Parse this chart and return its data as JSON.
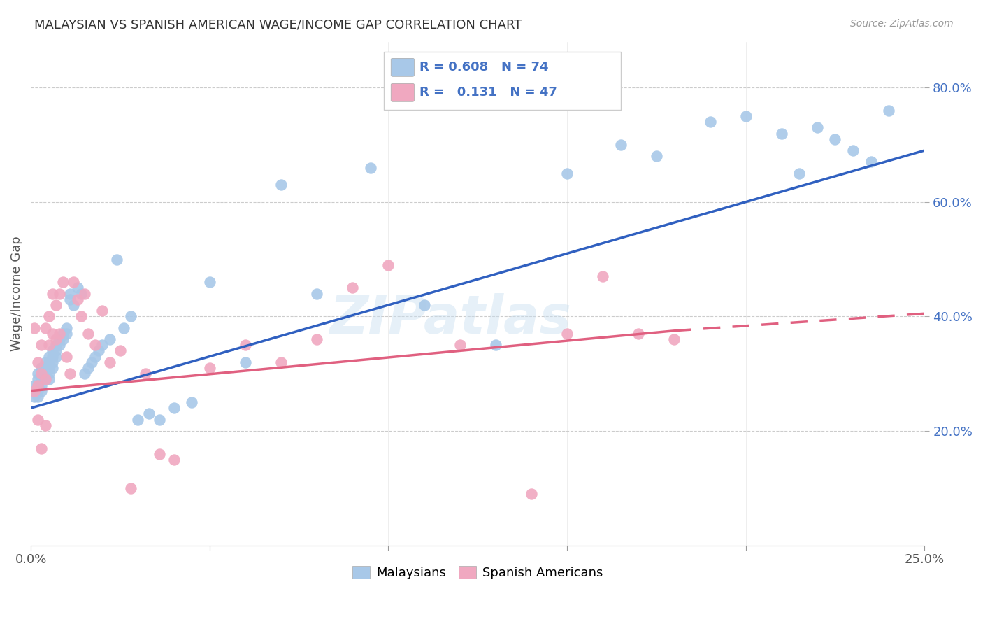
{
  "title": "MALAYSIAN VS SPANISH AMERICAN WAGE/INCOME GAP CORRELATION CHART",
  "source": "Source: ZipAtlas.com",
  "ylabel": "Wage/Income Gap",
  "xmin": 0.0,
  "xmax": 0.25,
  "ymin": 0.0,
  "ymax": 0.88,
  "yticks": [
    0.2,
    0.4,
    0.6,
    0.8
  ],
  "ytick_labels": [
    "20.0%",
    "40.0%",
    "60.0%",
    "80.0%"
  ],
  "xtick_positions": [
    0.0,
    0.05,
    0.1,
    0.15,
    0.2,
    0.25
  ],
  "r_malaysian": 0.608,
  "n_malaysian": 74,
  "r_spanish": 0.131,
  "n_spanish": 47,
  "blue_line_color": "#3060c0",
  "pink_line_color": "#e06080",
  "blue_dot_color": "#a8c8e8",
  "pink_dot_color": "#f0a8c0",
  "blue_text_color": "#4472c4",
  "watermark": "ZIPatlas",
  "malaysian_x": [
    0.001,
    0.001,
    0.001,
    0.002,
    0.002,
    0.002,
    0.002,
    0.002,
    0.003,
    0.003,
    0.003,
    0.003,
    0.003,
    0.004,
    0.004,
    0.004,
    0.004,
    0.005,
    0.005,
    0.005,
    0.005,
    0.005,
    0.006,
    0.006,
    0.006,
    0.006,
    0.007,
    0.007,
    0.007,
    0.008,
    0.008,
    0.009,
    0.009,
    0.01,
    0.01,
    0.011,
    0.011,
    0.012,
    0.013,
    0.014,
    0.015,
    0.016,
    0.017,
    0.018,
    0.019,
    0.02,
    0.022,
    0.024,
    0.026,
    0.028,
    0.03,
    0.033,
    0.036,
    0.04,
    0.045,
    0.05,
    0.06,
    0.07,
    0.08,
    0.095,
    0.11,
    0.13,
    0.15,
    0.165,
    0.175,
    0.19,
    0.2,
    0.21,
    0.215,
    0.22,
    0.225,
    0.23,
    0.235,
    0.24
  ],
  "malaysian_y": [
    0.27,
    0.28,
    0.26,
    0.3,
    0.29,
    0.28,
    0.27,
    0.26,
    0.31,
    0.3,
    0.29,
    0.28,
    0.27,
    0.32,
    0.31,
    0.3,
    0.29,
    0.33,
    0.32,
    0.31,
    0.3,
    0.29,
    0.34,
    0.33,
    0.32,
    0.31,
    0.35,
    0.34,
    0.33,
    0.36,
    0.35,
    0.37,
    0.36,
    0.38,
    0.37,
    0.44,
    0.43,
    0.42,
    0.45,
    0.44,
    0.3,
    0.31,
    0.32,
    0.33,
    0.34,
    0.35,
    0.36,
    0.5,
    0.38,
    0.4,
    0.22,
    0.23,
    0.22,
    0.24,
    0.25,
    0.46,
    0.32,
    0.63,
    0.44,
    0.66,
    0.42,
    0.35,
    0.65,
    0.7,
    0.68,
    0.74,
    0.75,
    0.72,
    0.65,
    0.73,
    0.71,
    0.69,
    0.67,
    0.76
  ],
  "spanish_x": [
    0.001,
    0.001,
    0.002,
    0.002,
    0.002,
    0.003,
    0.003,
    0.003,
    0.004,
    0.004,
    0.004,
    0.005,
    0.005,
    0.006,
    0.006,
    0.007,
    0.007,
    0.008,
    0.008,
    0.009,
    0.01,
    0.011,
    0.012,
    0.013,
    0.014,
    0.015,
    0.016,
    0.018,
    0.02,
    0.022,
    0.025,
    0.028,
    0.032,
    0.036,
    0.04,
    0.05,
    0.06,
    0.07,
    0.08,
    0.09,
    0.1,
    0.12,
    0.14,
    0.15,
    0.16,
    0.17,
    0.18
  ],
  "spanish_y": [
    0.27,
    0.38,
    0.32,
    0.28,
    0.22,
    0.35,
    0.3,
    0.17,
    0.38,
    0.29,
    0.21,
    0.4,
    0.35,
    0.44,
    0.37,
    0.42,
    0.36,
    0.44,
    0.37,
    0.46,
    0.33,
    0.3,
    0.46,
    0.43,
    0.4,
    0.44,
    0.37,
    0.35,
    0.41,
    0.32,
    0.34,
    0.1,
    0.3,
    0.16,
    0.15,
    0.31,
    0.35,
    0.32,
    0.36,
    0.45,
    0.49,
    0.35,
    0.09,
    0.37,
    0.47,
    0.37,
    0.36
  ],
  "blue_trendline_x": [
    0.0,
    0.25
  ],
  "blue_trendline_y": [
    0.24,
    0.69
  ],
  "pink_trendline_x0": 0.0,
  "pink_trendline_x1": 0.18,
  "pink_trendline_x2": 0.25,
  "pink_trendline_y0": 0.27,
  "pink_trendline_y1": 0.375,
  "pink_trendline_y2": 0.405
}
